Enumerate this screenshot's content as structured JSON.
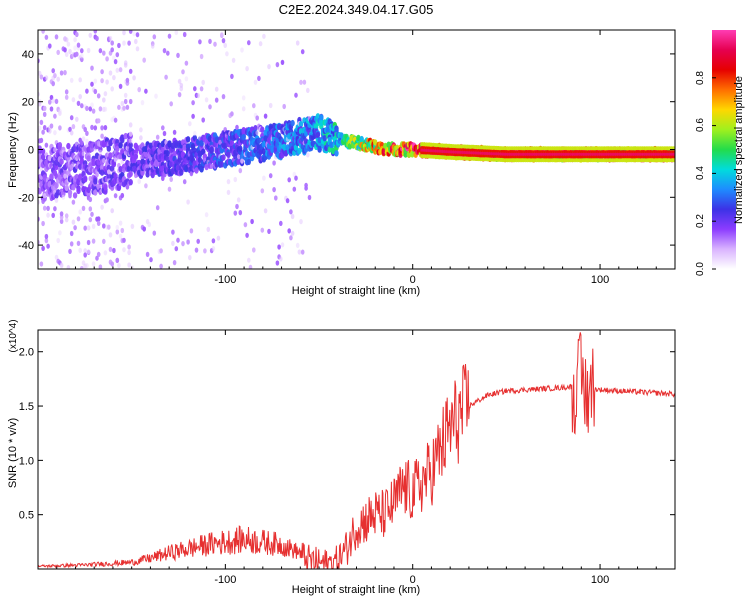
{
  "title": "C2E2.2024.349.04.17.G05",
  "colors": {
    "snr_line": "#e63030",
    "colormap": [
      "#ffffff",
      "#d9b3ff",
      "#8c3cff",
      "#3c32e6",
      "#1e8cff",
      "#00dcdc",
      "#23dc4b",
      "#a0f01e",
      "#ffd700",
      "#ff6e00",
      "#e60000",
      "#e60050",
      "#ff3cb4"
    ]
  },
  "chart_data": [
    {
      "type": "heatmap",
      "title": "C2E2.2024.349.04.17.G05",
      "xlabel": "Height of straight line (km)",
      "ylabel": "Frequency (Hz)",
      "xlim": [
        -200,
        140
      ],
      "ylim": [
        -50,
        50
      ],
      "xticks": [
        -100,
        0,
        100
      ],
      "xtick_labels": [
        "-100",
        "0",
        "100"
      ],
      "yticks": [
        -40,
        -20,
        0,
        20,
        40
      ],
      "ytick_labels": [
        "-40",
        "-20",
        "0",
        "20",
        "40"
      ],
      "colorbar": {
        "label": "Normalized spectral amplitude",
        "range": [
          0.0,
          1.0
        ],
        "ticks": [
          0.0,
          0.2,
          0.4,
          0.6,
          0.8
        ],
        "tick_labels": [
          "0.0",
          "0.2",
          "0.4",
          "0.6",
          "0.8"
        ]
      },
      "ridge": {
        "height_km": [
          -200,
          -175,
          -150,
          -125,
          -100,
          -75,
          -50,
          -40,
          -30,
          -20,
          -10,
          0,
          20,
          50,
          90,
          140
        ],
        "frequency_hz": [
          -10,
          -8,
          -5,
          -3,
          0,
          3,
          7,
          4,
          3,
          1,
          0,
          0,
          -1,
          -2,
          -2,
          -2
        ],
        "amplitude": [
          0.18,
          0.2,
          0.22,
          0.24,
          0.28,
          0.32,
          0.38,
          0.45,
          0.6,
          0.8,
          0.85,
          0.9,
          0.92,
          0.92,
          0.9,
          0.9
        ]
      }
    },
    {
      "type": "line",
      "xlabel": "Height of straight line (km)",
      "ylabel": "SNR (10 * v/v)",
      "y_multiplier": "(x10^4)",
      "xlim": [
        -200,
        140
      ],
      "ylim": [
        0,
        2.2
      ],
      "xticks": [
        -100,
        0,
        100
      ],
      "xtick_labels": [
        "-100",
        "0",
        "100"
      ],
      "yticks": [
        0.5,
        1.0,
        1.5,
        2.0
      ],
      "ytick_labels": [
        "0.5",
        "1.0",
        "1.5",
        "2.0"
      ],
      "series": [
        {
          "name": "SNR",
          "x": [
            -200,
            -175,
            -150,
            -140,
            -130,
            -120,
            -110,
            -100,
            -90,
            -80,
            -70,
            -60,
            -55,
            -50,
            -45,
            -40,
            -35,
            -30,
            -25,
            -20,
            -15,
            -10,
            -5,
            0,
            5,
            10,
            15,
            20,
            25,
            30,
            40,
            50,
            60,
            70,
            80,
            85,
            88,
            90,
            92,
            95,
            100,
            110,
            120,
            130,
            140
          ],
          "y": [
            0.02,
            0.03,
            0.05,
            0.08,
            0.12,
            0.15,
            0.18,
            0.2,
            0.22,
            0.2,
            0.18,
            0.12,
            0.08,
            0.06,
            0.05,
            0.08,
            0.2,
            0.4,
            0.45,
            0.5,
            0.5,
            0.6,
            0.75,
            0.7,
            0.8,
            0.9,
            1.1,
            1.3,
            1.4,
            1.5,
            1.6,
            1.64,
            1.65,
            1.66,
            1.67,
            1.68,
            1.7,
            1.75,
            1.6,
            1.66,
            1.65,
            1.64,
            1.63,
            1.62,
            1.61
          ]
        }
      ]
    }
  ],
  "colorbar_tick_1": "0.0",
  "colorbar_tick_2": "0.2",
  "colorbar_tick_3": "0.4",
  "colorbar_tick_4": "0.6",
  "colorbar_tick_5": "0.8"
}
